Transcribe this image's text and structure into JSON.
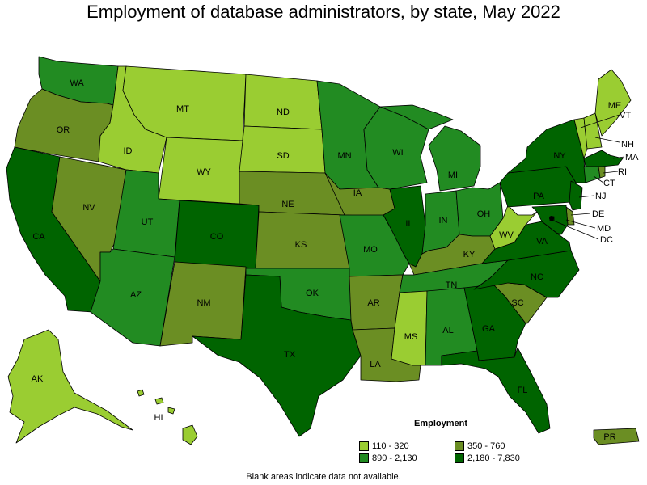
{
  "title": "Employment of database administrators, by state, May 2022",
  "colors": {
    "c1": "#9ACD32",
    "c2": "#6B8E23",
    "c3": "#228B22",
    "c4": "#006400",
    "none": "#FFFFFF"
  },
  "legend": {
    "title": "Employment",
    "items": [
      {
        "label": "110 - 320",
        "color": "#9ACD32"
      },
      {
        "label": "350 - 760",
        "color": "#6B8E23"
      },
      {
        "label": "890 - 2,130",
        "color": "#228B22"
      },
      {
        "label": "2,180 - 7,830",
        "color": "#006400"
      }
    ]
  },
  "footnote": "Blank areas indicate data not available.",
  "states": {
    "WA": {
      "label": "WA",
      "class": "c3"
    },
    "OR": {
      "label": "OR",
      "class": "c2"
    },
    "CA": {
      "label": "CA",
      "class": "c4"
    },
    "NV": {
      "label": "NV",
      "class": "c2"
    },
    "ID": {
      "label": "ID",
      "class": "c1"
    },
    "MT": {
      "label": "MT",
      "class": "c1"
    },
    "WY": {
      "label": "WY",
      "class": "c1"
    },
    "UT": {
      "label": "UT",
      "class": "c3"
    },
    "AZ": {
      "label": "AZ",
      "class": "c3"
    },
    "CO": {
      "label": "CO",
      "class": "c4"
    },
    "NM": {
      "label": "NM",
      "class": "c2"
    },
    "ND": {
      "label": "ND",
      "class": "c1"
    },
    "SD": {
      "label": "SD",
      "class": "c1"
    },
    "NE": {
      "label": "NE",
      "class": "c2"
    },
    "KS": {
      "label": "KS",
      "class": "c2"
    },
    "OK": {
      "label": "OK",
      "class": "c3"
    },
    "TX": {
      "label": "TX",
      "class": "c4"
    },
    "MN": {
      "label": "MN",
      "class": "c3"
    },
    "IA": {
      "label": "IA",
      "class": "c2"
    },
    "MO": {
      "label": "MO",
      "class": "c3"
    },
    "AR": {
      "label": "AR",
      "class": "c2"
    },
    "LA": {
      "label": "LA",
      "class": "c2"
    },
    "WI": {
      "label": "WI",
      "class": "c3"
    },
    "IL": {
      "label": "IL",
      "class": "c4"
    },
    "MI": {
      "label": "MI",
      "class": "c3"
    },
    "IN": {
      "label": "IN",
      "class": "c3"
    },
    "OH": {
      "label": "OH",
      "class": "c3"
    },
    "KY": {
      "label": "KY",
      "class": "c2"
    },
    "TN": {
      "label": "TN",
      "class": "c3"
    },
    "MS": {
      "label": "MS",
      "class": "c1"
    },
    "AL": {
      "label": "AL",
      "class": "c3"
    },
    "GA": {
      "label": "GA",
      "class": "c4"
    },
    "FL": {
      "label": "FL",
      "class": "c4"
    },
    "SC": {
      "label": "SC",
      "class": "c2"
    },
    "NC": {
      "label": "NC",
      "class": "c4"
    },
    "VA": {
      "label": "VA",
      "class": "c4"
    },
    "WV": {
      "label": "WV",
      "class": "c1"
    },
    "PA": {
      "label": "PA",
      "class": "c4"
    },
    "NY": {
      "label": "NY",
      "class": "c4"
    },
    "VT": {
      "label": "VT",
      "class": "c1"
    },
    "NH": {
      "label": "NH",
      "class": "c1"
    },
    "ME": {
      "label": "ME",
      "class": "c1"
    },
    "MA": {
      "label": "MA",
      "class": "c4"
    },
    "RI": {
      "label": "RI",
      "class": "c2"
    },
    "CT": {
      "label": "CT",
      "class": "c3"
    },
    "NJ": {
      "label": "NJ",
      "class": "c4"
    },
    "DE": {
      "label": "DE",
      "class": "c2"
    },
    "MD": {
      "label": "MD",
      "class": "c4"
    },
    "DC": {
      "label": "DC",
      "class": "c4"
    },
    "AK": {
      "label": "AK",
      "class": "c1"
    },
    "HI": {
      "label": "HI",
      "class": "c1"
    },
    "PR": {
      "label": "PR",
      "class": "c2"
    }
  }
}
